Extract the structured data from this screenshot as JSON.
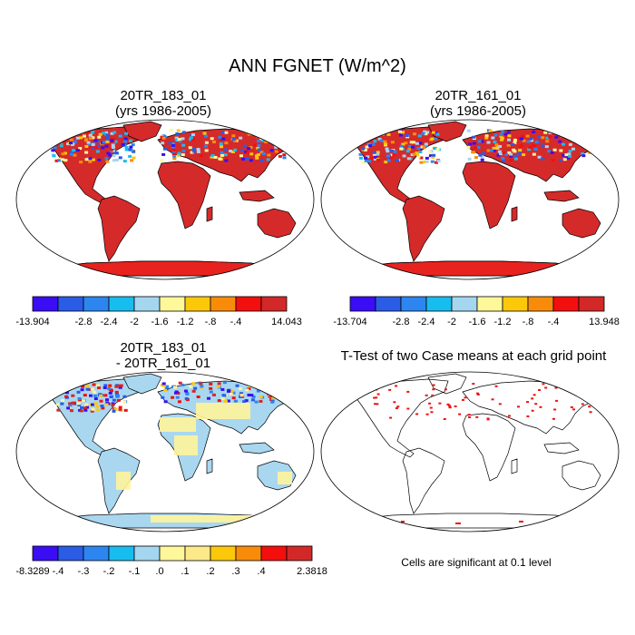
{
  "figure": {
    "title": "ANN FGNET (W/m^2)",
    "panels": [
      {
        "id": "p1",
        "title_line1": "20TR_183_01",
        "title_line2": "(yrs 1986-2005)",
        "pattern": "field"
      },
      {
        "id": "p2",
        "title_line1": "20TR_161_01",
        "title_line2": "(yrs 1986-2005)",
        "pattern": "field"
      },
      {
        "id": "p3",
        "title_line1": "20TR_183_01",
        "title_line2": "- 20TR_161_01",
        "pattern": "diff"
      },
      {
        "id": "p4",
        "title_line1": "T-Test of two Case means at each grid point",
        "title_line2": "",
        "pattern": "ttest"
      }
    ],
    "colorbars": [
      {
        "id": "cbar1",
        "colors": [
          "#3b0df5",
          "#2a5ce6",
          "#2d86f0",
          "#18bdf0",
          "#a5d6f0",
          "#fff89a",
          "#fcc80a",
          "#f88c0a",
          "#f40f0f",
          "#d32828"
        ],
        "labels": [
          "-13.904",
          "",
          "-2.8",
          "-2.4",
          "-2",
          "-1.6",
          "-1.2",
          "-.8",
          "-.4",
          "14.043"
        ]
      },
      {
        "id": "cbar2",
        "colors": [
          "#3b0df5",
          "#2a5ce6",
          "#2d86f0",
          "#18bdf0",
          "#a5d6f0",
          "#fff89a",
          "#fcc80a",
          "#f88c0a",
          "#f40f0f",
          "#d32828"
        ],
        "labels": [
          "-13.704",
          "",
          "-2.8",
          "-2.4",
          "-2",
          "-1.6",
          "-1.2",
          "-.8",
          "-.4",
          "13.948"
        ]
      },
      {
        "id": "cbar3",
        "colors": [
          "#3b0df5",
          "#2a5ce6",
          "#2d86f0",
          "#18bdf0",
          "#a5d6f0",
          "#fff89a",
          "#fce98a",
          "#fcc80a",
          "#f88c0a",
          "#f40f0f",
          "#d32828"
        ],
        "labels": [
          "-8.3289",
          "-.4",
          "-.3",
          "-.2",
          "-.1",
          ".0",
          ".1",
          ".2",
          ".3",
          ".4",
          "2.3818"
        ]
      }
    ],
    "significance_note": "Cells are significant at 0.1 level",
    "colors": {
      "land_warm": "#d52a2a",
      "ocean": "#ffffff",
      "diff_base": "#a9d7f0",
      "diff_pos": "#fff49a",
      "ttest_mark": "#ee1111"
    }
  }
}
